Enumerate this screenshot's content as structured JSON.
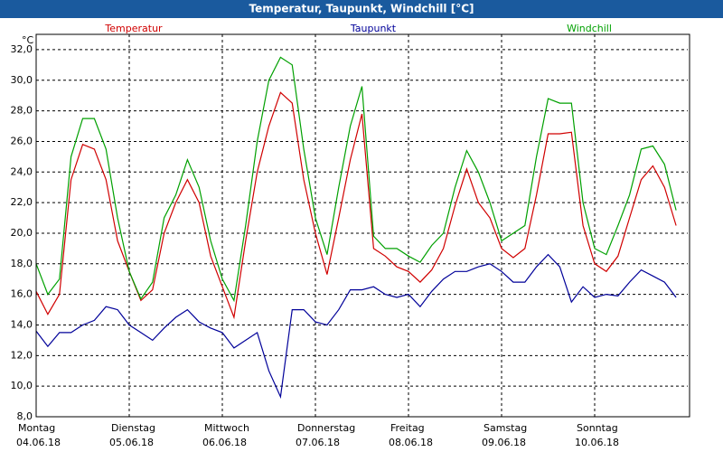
{
  "chart_data": {
    "type": "line",
    "title": "Temperatur, Taupunkt, Windchill [°C]",
    "y_unit": "°C",
    "xlim": [
      0,
      168
    ],
    "xticks": [
      {
        "value": 0,
        "label": "Montag"
      },
      {
        "value": 24,
        "label": "Dienstag"
      },
      {
        "value": 48,
        "label": "Mittwoch"
      },
      {
        "value": 72,
        "label": "Donnerstag"
      },
      {
        "value": 96,
        "label": "Freitag"
      },
      {
        "value": 120,
        "label": "Samstag"
      },
      {
        "value": 144,
        "label": "Sonntag"
      }
    ],
    "xtick_dates": [
      "04.06.18",
      "05.06.18",
      "06.06.18",
      "07.06.18",
      "08.06.18",
      "09.06.18",
      "10.06.18"
    ],
    "ylim": [
      8,
      33
    ],
    "yticks": [
      {
        "value": 8,
        "label": "8,0"
      },
      {
        "value": 10,
        "label": "10,0"
      },
      {
        "value": 12,
        "label": "12,0"
      },
      {
        "value": 14,
        "label": "14,0"
      },
      {
        "value": 16,
        "label": "16,0"
      },
      {
        "value": 18,
        "label": "18,0"
      },
      {
        "value": 20,
        "label": "20,0"
      },
      {
        "value": 22,
        "label": "22,0"
      },
      {
        "value": 24,
        "label": "24,0"
      },
      {
        "value": 26,
        "label": "26,0"
      },
      {
        "value": 28,
        "label": "28,0"
      },
      {
        "value": 30,
        "label": "30,0"
      },
      {
        "value": 32,
        "label": "32,0"
      }
    ],
    "grid": true,
    "x": [
      0,
      3,
      6,
      9,
      12,
      15,
      18,
      21,
      24,
      27,
      30,
      33,
      36,
      39,
      42,
      45,
      48,
      51,
      54,
      57,
      60,
      63,
      66,
      69,
      72,
      75,
      78,
      81,
      84,
      87,
      90,
      93,
      96,
      99,
      102,
      105,
      108,
      111,
      114,
      117,
      120,
      123,
      126,
      129,
      132,
      135,
      138,
      141,
      144,
      147,
      150,
      153,
      156,
      159,
      162,
      165
    ],
    "series": [
      {
        "name": "Temperatur",
        "color": "#d00000",
        "values": [
          16.2,
          14.7,
          16,
          23.5,
          25.8,
          25.5,
          23.5,
          19.5,
          17.5,
          15.6,
          16.3,
          20,
          22,
          23.5,
          22,
          18.5,
          16.5,
          14.5,
          19.5,
          24,
          27,
          29.2,
          28.5,
          23.5,
          20,
          17.3,
          21,
          24.8,
          27.8,
          19,
          18.5,
          17.8,
          17.5,
          16.8,
          17.6,
          19,
          21.8,
          24.2,
          22,
          21,
          19,
          18.4,
          19,
          22.5,
          26.5,
          26.5,
          26.6,
          20.5,
          18,
          17.5,
          18.5,
          21,
          23.5,
          24.4,
          23,
          20.5
        ]
      },
      {
        "name": "Taupunkt",
        "color": "#000099",
        "values": [
          13.6,
          12.6,
          13.5,
          13.5,
          14,
          14.3,
          15.2,
          15,
          14,
          13.5,
          13,
          13.8,
          14.5,
          15,
          14.2,
          13.8,
          13.5,
          12.5,
          13,
          13.5,
          11,
          9.3,
          15,
          15,
          14.2,
          14,
          15,
          16.3,
          16.3,
          16.5,
          16,
          15.8,
          16,
          15.2,
          16.2,
          17,
          17.5,
          17.5,
          17.8,
          18,
          17.5,
          16.8,
          16.8,
          17.8,
          18.6,
          17.8,
          15.5,
          16.5,
          15.8,
          16,
          15.9,
          16.8,
          17.6,
          17.2,
          16.8,
          15.8
        ]
      },
      {
        "name": "Windchill",
        "color": "#00a000",
        "values": [
          18,
          16,
          17,
          25,
          27.5,
          27.5,
          25.5,
          21,
          17.5,
          15.7,
          16.8,
          21,
          22.5,
          24.8,
          23,
          19.5,
          17,
          15.6,
          20.5,
          26,
          30,
          31.5,
          31,
          25.5,
          21,
          18.6,
          23,
          27,
          29.6,
          19.8,
          19,
          19,
          18.5,
          18.1,
          19.2,
          20,
          23,
          25.4,
          24,
          22,
          19.5,
          20,
          20.5,
          25,
          28.8,
          28.5,
          28.5,
          22,
          19,
          18.6,
          20.5,
          22.5,
          25.5,
          25.7,
          24.5,
          21.5
        ]
      }
    ]
  }
}
